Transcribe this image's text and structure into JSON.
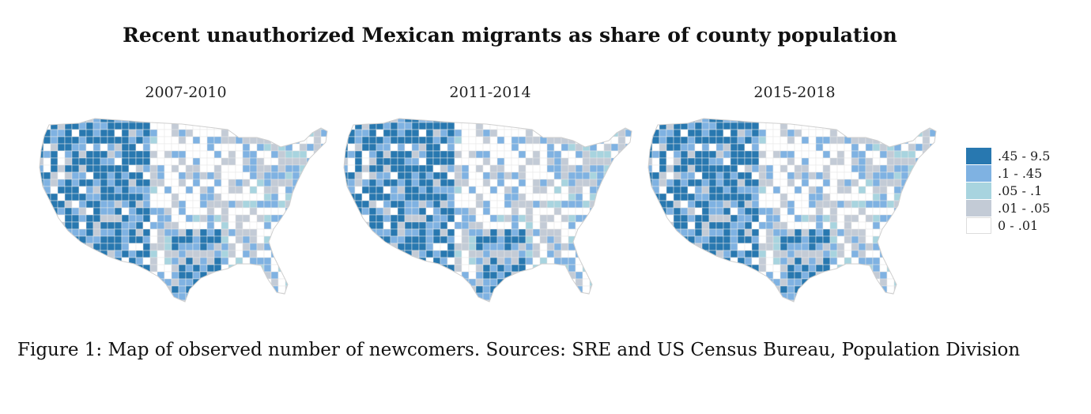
{
  "title": "Recent unauthorized Mexican migrants as share of county population",
  "maps": [
    {
      "period": "2007-2010"
    },
    {
      "period": "2011-2014"
    },
    {
      "period": "2015-2018"
    }
  ],
  "legend": {
    "items": [
      {
        "label": ".45 - 9.5",
        "color": "#2878b0"
      },
      {
        "label": ".1 - .45",
        "color": "#7fb2e2"
      },
      {
        "label": ".05 - .1",
        "color": "#a8d4df"
      },
      {
        "label": ".01 - .05",
        "color": "#c3cbd6"
      },
      {
        "label": "0 - .01",
        "color": "#ffffff"
      }
    ]
  },
  "caption": "Figure 1: Map of observed number of newcomers. Sources: SRE and US Census Bureau, Population Division"
}
